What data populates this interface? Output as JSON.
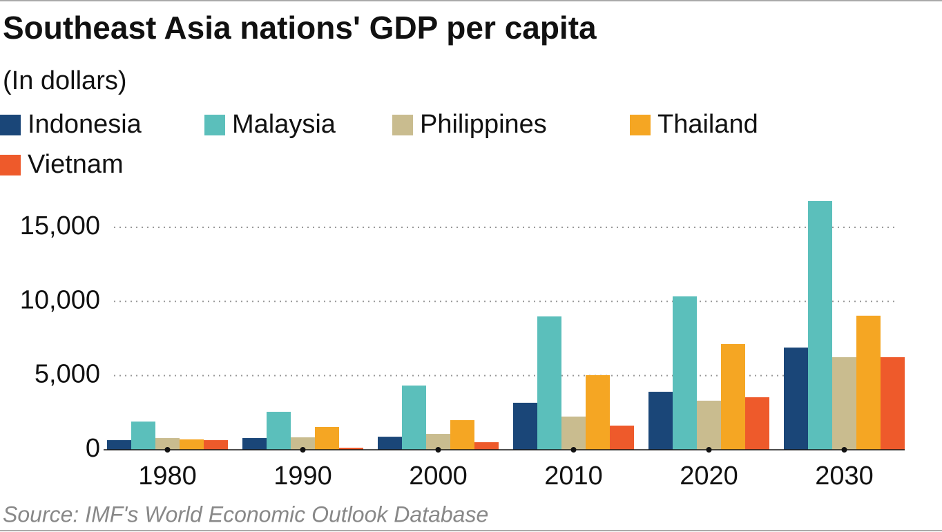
{
  "chart_data": {
    "type": "bar",
    "title": "Southeast Asia nations' GDP per capita",
    "subtitle": "(In dollars)",
    "source": "Source: IMF's World Economic Outlook Database",
    "categories": [
      "1980",
      "1990",
      "2000",
      "2010",
      "2020",
      "2030"
    ],
    "series": [
      {
        "name": "Indonesia",
        "color": "#1a4678",
        "values": [
          650,
          790,
          880,
          3170,
          3910,
          6890
        ]
      },
      {
        "name": "Malaysia",
        "color": "#5bbfbb",
        "values": [
          1900,
          2560,
          4330,
          8990,
          10340,
          16770
        ]
      },
      {
        "name": "Philippines",
        "color": "#c9bc8f",
        "values": [
          790,
          840,
          1070,
          2240,
          3310,
          6240
        ]
      },
      {
        "name": "Thailand",
        "color": "#f5a623",
        "values": [
          700,
          1540,
          2000,
          5030,
          7130,
          9040
        ]
      },
      {
        "name": "Vietnam",
        "color": "#ee5a2b",
        "values": [
          650,
          140,
          510,
          1630,
          3540,
          6240
        ]
      }
    ],
    "ylim": [
      0,
      17000
    ],
    "yticks": [
      0,
      {
        "value": 5000,
        "label": "5,000"
      },
      {
        "value": 10000,
        "label": "10,000"
      },
      {
        "value": 15000,
        "label": "15,000"
      }
    ],
    "grid": true
  }
}
